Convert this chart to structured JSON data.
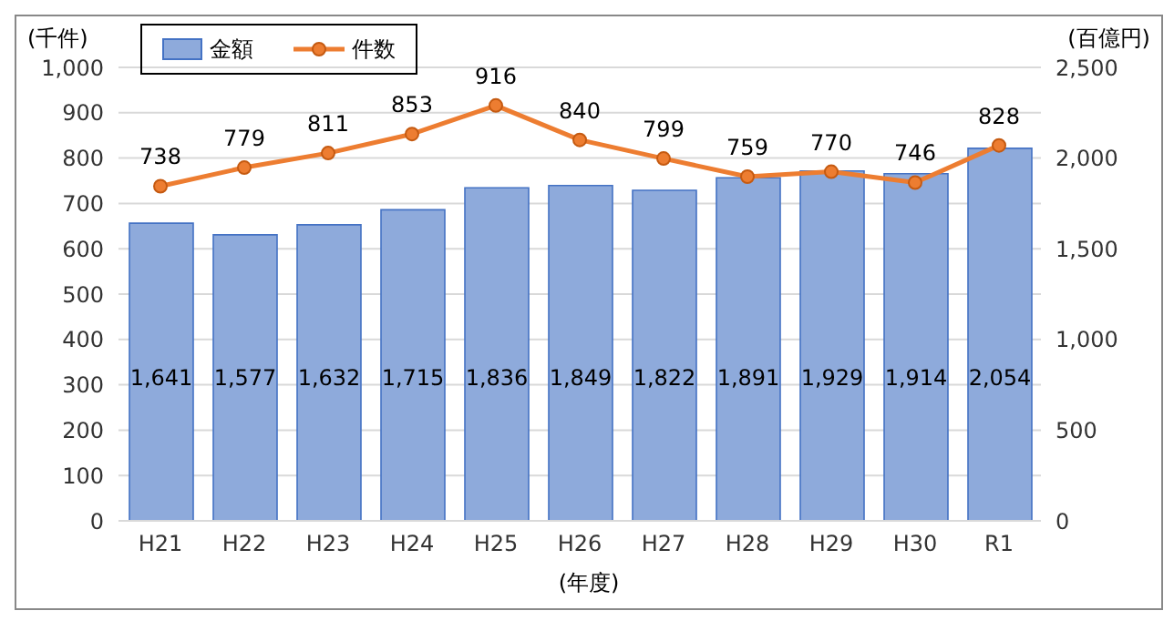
{
  "chart_data": {
    "type": "bar",
    "ylabel": "(千件)",
    "y2label": "(百億円)",
    "xlabel": "(年度)",
    "categories": [
      "H21",
      "H22",
      "H23",
      "H24",
      "H25",
      "H26",
      "H27",
      "H28",
      "H29",
      "H30",
      "R1"
    ],
    "series": [
      {
        "name": "金額",
        "axis": "y2",
        "color": "#8eaadb",
        "values": [
          1641,
          1577,
          1632,
          1715,
          1836,
          1849,
          1822,
          1891,
          1929,
          1914,
          2054
        ],
        "value_labels": [
          "1,641",
          "1,577",
          "1,632",
          "1,715",
          "1,836",
          "1,849",
          "1,822",
          "1,891",
          "1,929",
          "1,914",
          "2,054"
        ]
      },
      {
        "name": "件数",
        "type": "line",
        "axis": "y",
        "color": "#ed7d31",
        "marker": "circle",
        "values": [
          738,
          779,
          811,
          853,
          916,
          840,
          799,
          759,
          770,
          746,
          828
        ],
        "value_labels": [
          "738",
          "779",
          "811",
          "853",
          "916",
          "840",
          "799",
          "759",
          "770",
          "746",
          "828"
        ]
      }
    ],
    "ylim": [
      0,
      1000
    ],
    "yticks": [
      0,
      100,
      200,
      300,
      400,
      500,
      600,
      700,
      800,
      900,
      {
        "value": 1000,
        "label": "1,000"
      }
    ],
    "y2lim": [
      0,
      2500
    ],
    "y2ticks": [
      0,
      500,
      {
        "value": 1000,
        "label": "1,000"
      },
      {
        "value": 1500,
        "label": "1,500"
      },
      {
        "value": 2000,
        "label": "2,000"
      },
      {
        "value": 2500,
        "label": "2,500"
      }
    ],
    "grid": "y",
    "legend": "top left"
  }
}
